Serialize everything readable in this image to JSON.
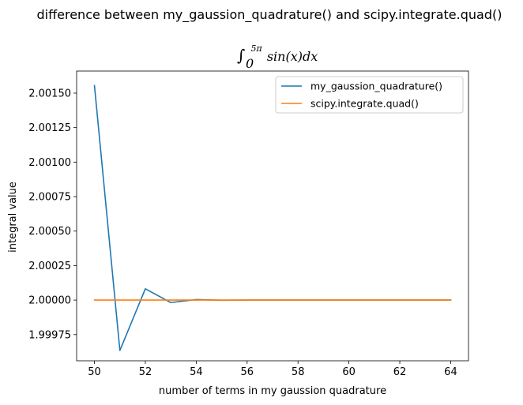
{
  "figure": {
    "suptitle": "difference between my_gaussion_quadrature() and scipy.integrate.quad()"
  },
  "chart_data": {
    "type": "line",
    "title": "∫₀^{5π} sin(x)dx",
    "title_parts": {
      "integral_sign": "∫",
      "lower_limit": "0",
      "upper_limit": "5π",
      "integrand": "sin(x)dx"
    },
    "xlabel": "number of terms in my gaussion quadrature",
    "ylabel": "integral value",
    "x": [
      50,
      51,
      52,
      53,
      54,
      55,
      56,
      57,
      58,
      59,
      60,
      61,
      62,
      63,
      64
    ],
    "xlim": [
      49.3,
      64.7
    ],
    "ylim": [
      1.99956,
      2.00166
    ],
    "x_ticks": [
      50,
      52,
      54,
      56,
      58,
      60,
      62,
      64
    ],
    "x_tick_labels": [
      "50",
      "52",
      "54",
      "56",
      "58",
      "60",
      "62",
      "64"
    ],
    "y_ticks": [
      1.99975,
      2.0,
      2.00025,
      2.0005,
      2.00075,
      2.001,
      2.00125,
      2.0015
    ],
    "y_tick_labels": [
      "1.99975",
      "2.00000",
      "2.00025",
      "2.00050",
      "2.00075",
      "2.00100",
      "2.00125",
      "2.00150"
    ],
    "grid": false,
    "legend_position": "upper-right",
    "series": [
      {
        "name": "my_gaussion_quadrature()",
        "color": "#1f77b4",
        "values": [
          2.001555,
          1.999635,
          2.000082,
          1.999982,
          2.000004,
          1.999999,
          2.0000005,
          2.0,
          2.0,
          2.0,
          2.0,
          2.0,
          2.0,
          2.0,
          2.0
        ]
      },
      {
        "name": "scipy.integrate.quad()",
        "color": "#ff7f0e",
        "values": [
          2.0,
          2.0,
          2.0,
          2.0,
          2.0,
          2.0,
          2.0,
          2.0,
          2.0,
          2.0,
          2.0,
          2.0,
          2.0,
          2.0,
          2.0
        ]
      }
    ]
  }
}
